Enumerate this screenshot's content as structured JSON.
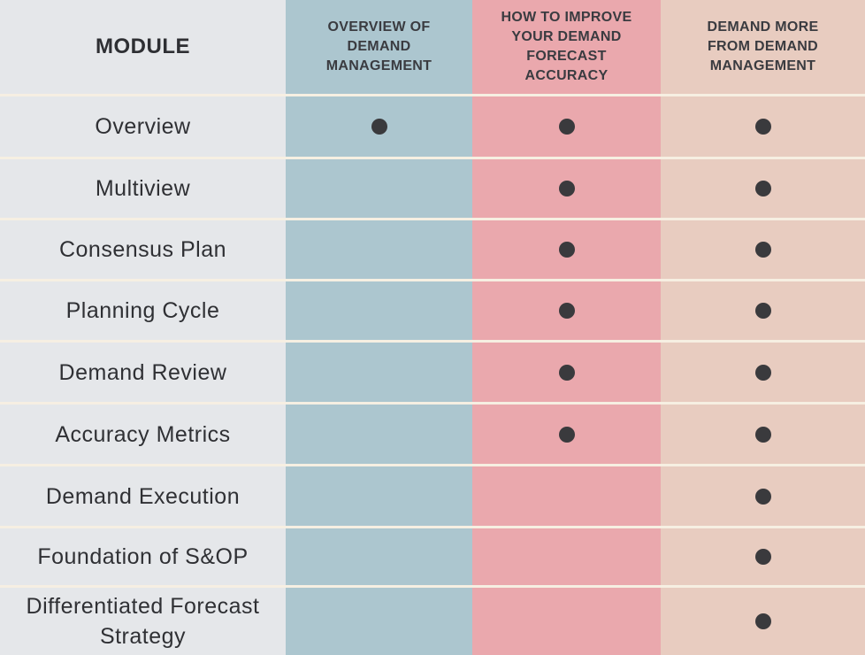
{
  "header": {
    "module": "MODULE",
    "columns": [
      [
        "OVERVIEW OF",
        "DEMAND",
        "MANAGEMENT"
      ],
      [
        "HOW TO IMPROVE",
        "YOUR DEMAND",
        "FORECAST",
        "ACCURACY"
      ],
      [
        "DEMAND MORE",
        "FROM DEMAND",
        "MANAGEMENT"
      ]
    ]
  },
  "rows": [
    {
      "label": [
        "Overview"
      ],
      "marks": [
        true,
        true,
        true
      ]
    },
    {
      "label": [
        "Multiview"
      ],
      "marks": [
        false,
        true,
        true
      ]
    },
    {
      "label": [
        "Consensus Plan"
      ],
      "marks": [
        false,
        true,
        true
      ]
    },
    {
      "label": [
        "Planning Cycle"
      ],
      "marks": [
        false,
        true,
        true
      ]
    },
    {
      "label": [
        "Demand Review"
      ],
      "marks": [
        false,
        true,
        true
      ]
    },
    {
      "label": [
        "Accuracy Metrics"
      ],
      "marks": [
        false,
        true,
        true
      ]
    },
    {
      "label": [
        "Demand Execution"
      ],
      "marks": [
        false,
        false,
        true
      ]
    },
    {
      "label": [
        "Foundation of S&OP"
      ],
      "marks": [
        false,
        false,
        true
      ]
    },
    {
      "label": [
        "Differentiated Forecast",
        "Strategy"
      ],
      "marks": [
        false,
        false,
        true
      ]
    }
  ],
  "colors": {
    "module_column": "#e5e7ea",
    "column_1": "#acc6cf",
    "column_2": "#eaa8ad",
    "column_3": "#e8ccc0",
    "dot": "#3a3a3d"
  }
}
